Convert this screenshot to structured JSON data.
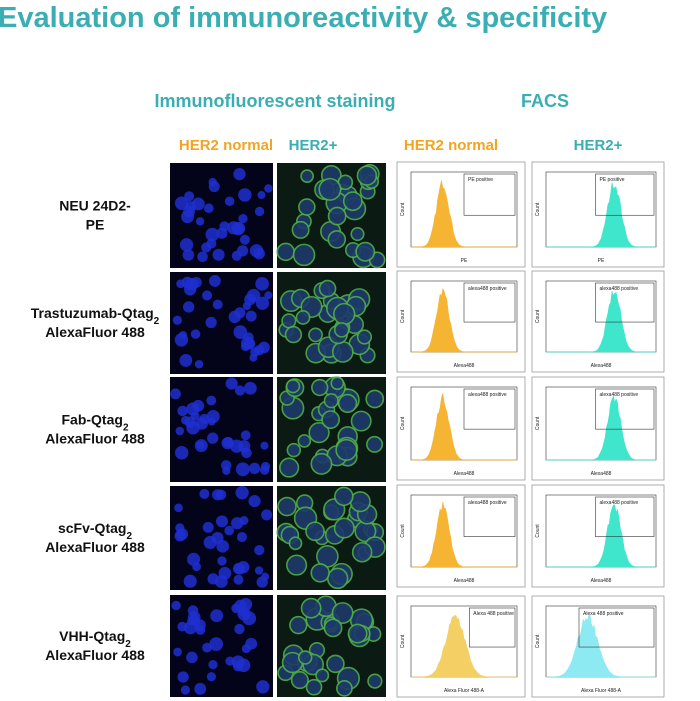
{
  "header": {
    "title": "Evaluation of immunoreactivity & specificity"
  },
  "sections": [
    "Immunofluorescent staining",
    "FACS"
  ],
  "columns": {
    "staining": [
      "HER2 normal",
      "HER2+"
    ],
    "facs": [
      "HER2 normal",
      "HER2+"
    ]
  },
  "rows": [
    {
      "name": "NEU 24D2-",
      "line2": "PE",
      "facs": [
        {
          "gate": "PE positive",
          "xlabel": "PE",
          "ylabel": "Count"
        },
        {
          "gate": "PE positive",
          "xlabel": "PE",
          "ylabel": "Count"
        }
      ]
    },
    {
      "name": "Trastuzumab-Qtag",
      "subscript": "2",
      "line2": "AlexaFluor 488",
      "facs": [
        {
          "gate": "alexa488 positive",
          "xlabel": "Alexa488",
          "ylabel": "Count"
        },
        {
          "gate": "alexa488 positive",
          "xlabel": "Alexa488",
          "ylabel": "Count"
        }
      ]
    },
    {
      "name": "Fab-Qtag",
      "subscript": "2",
      "line2": "AlexaFluor 488",
      "facs": [
        {
          "gate": "alexa488 positive",
          "xlabel": "Alexa488",
          "ylabel": "Count"
        },
        {
          "gate": "alexa488 positive",
          "xlabel": "Alexa488",
          "ylabel": "Count"
        }
      ]
    },
    {
      "name": "scFv-Qtag",
      "subscript": "2",
      "line2": "AlexaFluor 488",
      "facs": [
        {
          "gate": "alexa488 positive",
          "xlabel": "Alexa488",
          "ylabel": "Count"
        },
        {
          "gate": "alexa488 positive",
          "xlabel": "Alexa488",
          "ylabel": "Count"
        }
      ]
    },
    {
      "name": "VHH-Qtag",
      "subscript": "2",
      "line2": "AlexaFluor 488",
      "facs": [
        {
          "gate": "Alexa 488 positive",
          "xlabel": "Alexa Fluor 488-A",
          "ylabel": "Count"
        },
        {
          "gate": "Alexa 488 positive",
          "xlabel": "Alexa Fluor 488-A",
          "ylabel": "Count"
        }
      ]
    }
  ]
}
